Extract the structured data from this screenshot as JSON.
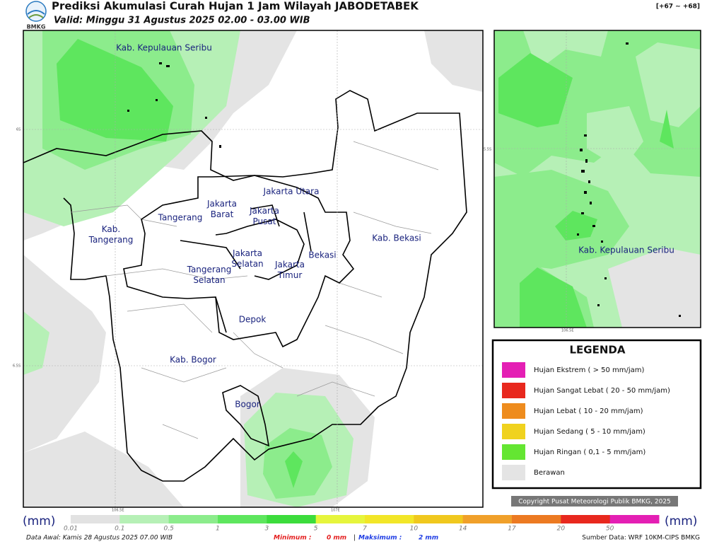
{
  "header": {
    "title": "Prediksi Akumulasi Curah Hujan 1 Jam Wilayah JABODETABEK",
    "subtitle": "Valid: Minggu 31 Agustus 2025 02.00 - 03.00 WIB",
    "logo_text": "BMKG",
    "code": "[+67 ~ +68]"
  },
  "map": {
    "labels": [
      "Kab. Kepulauan Seribu",
      "Jakarta Utara",
      "Jakarta Barat",
      "Jakarta Pusat",
      "Tangerang",
      "Kab. Tangerang",
      "Jakarta Selatan",
      "Jakarta Timur",
      "Bekasi",
      "Kab. Bekasi",
      "Tangerang Selatan",
      "Depok",
      "Kab. Bogor",
      "Bogor"
    ],
    "grid_labels": [
      "6S",
      "6.5S",
      "106.5E",
      "107E"
    ]
  },
  "inset": {
    "label": "Kab. Kepulauan Seribu",
    "grid_labels": [
      "5.5S",
      "106.5E"
    ]
  },
  "legend": {
    "title": "LEGENDA",
    "items": [
      {
        "label": "Hujan Ekstrem ( > 50 mm/jam)",
        "color": "#e41fb4"
      },
      {
        "label": "Hujan Sangat Lebat ( 20 - 50 mm/jam)",
        "color": "#e8281e"
      },
      {
        "label": "Hujan Lebat ( 10 - 20 mm/jam)",
        "color": "#ee8c1e"
      },
      {
        "label": "Hujan Sedang ( 5 - 10 mm/jam)",
        "color": "#f0d21e"
      },
      {
        "label": "Hujan Ringan ( 0,1 - 5 mm/jam)",
        "color": "#64e632"
      },
      {
        "label": "Berawan",
        "color": "#e4e4e4"
      }
    ]
  },
  "copyright": "Copyright Pusat Meteorologi Publik BMKG, 2025",
  "colorbar": {
    "unit": "(mm)",
    "ticks": [
      0.01,
      0.1,
      0.5,
      1,
      3,
      5,
      7,
      10,
      14,
      17,
      20,
      50
    ],
    "colors": [
      "#e2e2e2",
      "#b6f0b6",
      "#8cec8c",
      "#5ee65e",
      "#3cdc3c",
      "#e6f53c",
      "#f2e628",
      "#f0c81e",
      "#f0a02a",
      "#ec7a22",
      "#e8281e",
      "#e41fb4"
    ]
  },
  "footer": {
    "data_awal": "Data Awal: Kamis 28 Agustus 2025 07.00 WIB",
    "minimum_label": "Minimum :",
    "minimum": "0 mm",
    "separator": "|",
    "maximum_label": "Maksimum :",
    "maximum": "2 mm",
    "source": "Sumber Data: WRF 10KM-CIPS BMKG"
  }
}
